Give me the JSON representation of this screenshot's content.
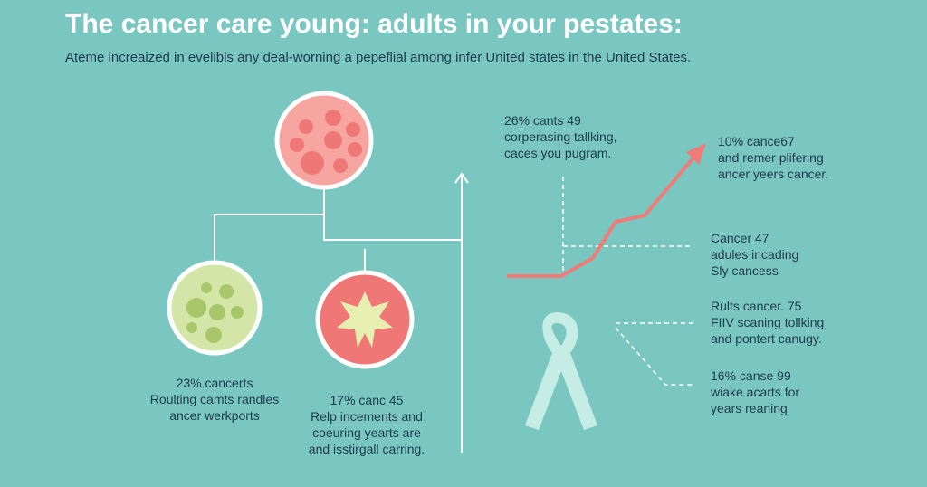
{
  "header": {
    "title": "The cancer care young: adults in your pestates:",
    "subtitle": "Ateme increaized in evelibls any deal-worning a pepeflial among infer United states in the United States."
  },
  "labels": [
    {
      "lines": [
        "23% cancerts",
        "Roulting camts randles",
        "ancer werkports"
      ]
    },
    {
      "lines": [
        "17% canc 45",
        "Relp incements and",
        "coeuring yearts are",
        "and isstirgall carring."
      ]
    },
    {
      "lines": [
        "26% cants 49",
        "corperasing tallking,",
        "caces you pugram."
      ]
    },
    {
      "lines": [
        "10% cance67",
        "and remer plifering",
        "ancer yeers cancer."
      ]
    },
    {
      "lines": [
        "Cancer 47",
        "adules incading",
        "Sly cancess"
      ]
    },
    {
      "lines": [
        "Rults cancer. 75",
        "FIIV scaning tollking",
        "and pontert canugy."
      ]
    },
    {
      "lines": [
        "16% canse 99",
        "wiake acarts for",
        "years reaning"
      ]
    }
  ]
}
